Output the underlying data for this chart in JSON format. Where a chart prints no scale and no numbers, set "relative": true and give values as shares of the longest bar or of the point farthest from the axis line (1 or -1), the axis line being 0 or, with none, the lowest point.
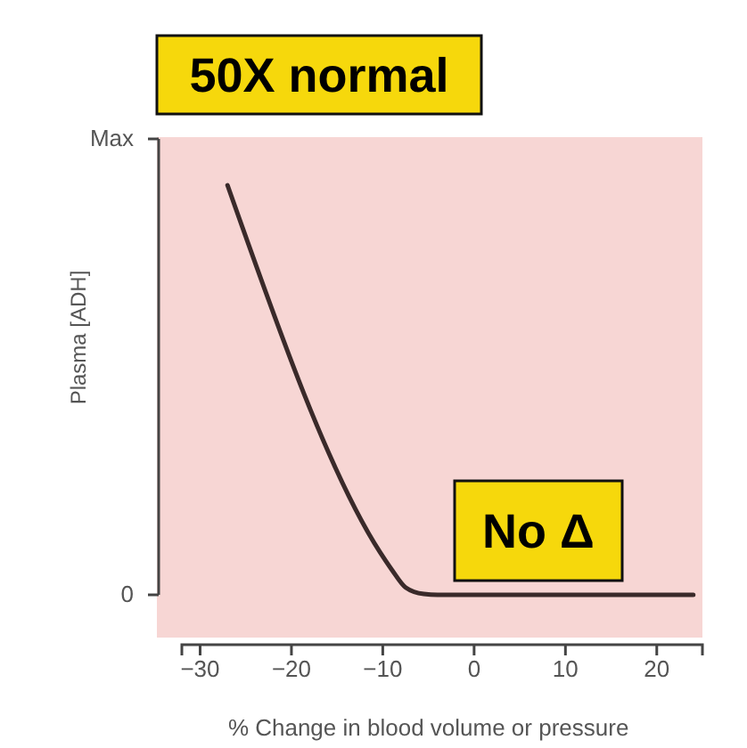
{
  "chart_data": {
    "type": "line",
    "xlabel": "% Change in blood volume or pressure",
    "ylabel": "Plasma [ADH]",
    "x": [
      -27,
      -10.3,
      -9,
      -7.5,
      -5.5,
      -4,
      24
    ],
    "series": [
      {
        "color": "#3a2a2a",
        "values": [
          1,
          0.104,
          0.061,
          0.018,
          0.002,
          0,
          0
        ]
      }
    ],
    "relative": true,
    "xlim": [
      -32,
      25
    ],
    "xticks": [
      -30,
      -20,
      -10,
      0,
      10,
      20
    ],
    "annotations": [
      "50X normal",
      "No Δ",
      "0",
      "Max"
    ],
    "grid": false,
    "marker": "none",
    "line_style": "solid"
  }
}
